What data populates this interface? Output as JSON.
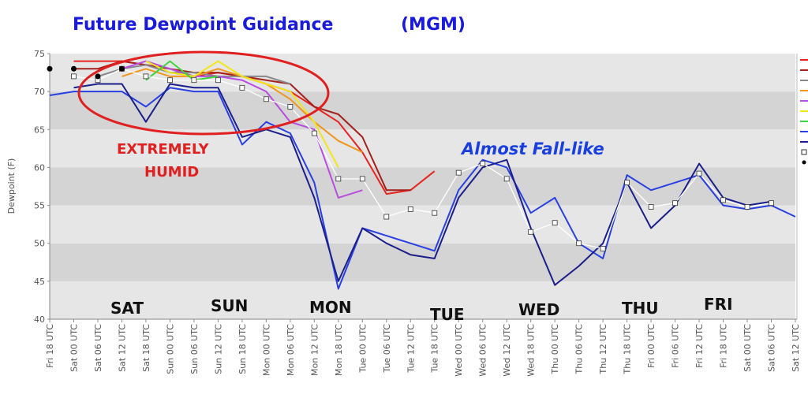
{
  "chart_data": {
    "type": "line",
    "title": "Future Dewpoint Guidance",
    "subtitle": "(MGM)",
    "y_label": "Dewpoint (F)",
    "annotations": [
      "EXTREMELY",
      "HUMID",
      "Almost Fall-like"
    ],
    "day_labels": [
      "SAT",
      "SUN",
      "MON",
      "TUE",
      "WED",
      "THU",
      "FRI"
    ],
    "categories": [
      "Fri 18 UTC",
      "Sat 00 UTC",
      "Sat 06 UTC",
      "Sat 12 UTC",
      "Sat 18 UTC",
      "Sun 00 UTC",
      "Sun 06 UTC",
      "Sun 12 UTC",
      "Sun 18 UTC",
      "Mon 00 UTC",
      "Mon 06 UTC",
      "Mon 12 UTC",
      "Mon 18 UTC",
      "Tue 00 UTC",
      "Tue 06 UTC",
      "Tue 12 UTC",
      "Tue 18 UTC",
      "Wed 00 UTC",
      "Wed 06 UTC",
      "Wed 12 UTC",
      "Wed 18 UTC",
      "Thu 00 UTC",
      "Thu 06 UTC",
      "Thu 12 UTC",
      "Thu 18 UTC",
      "Fri 00 UTC",
      "Fri 06 UTC",
      "Fri 12 UTC",
      "Fri 18 UTC",
      "Sat 00 UTC",
      "Sat 06 UTC",
      "Sat 12 UTC"
    ],
    "ylim": [
      40,
      75
    ],
    "yticks": [
      40,
      45,
      50,
      55,
      60,
      65,
      70,
      75
    ],
    "grid": true,
    "series": [
      {
        "color": "#e8231f",
        "marker": "none",
        "values": [
          null,
          74,
          74,
          74,
          73.5,
          73,
          72,
          72.5,
          72,
          71,
          70,
          68,
          66,
          62,
          56.5,
          57,
          59.5,
          null,
          null,
          null,
          null,
          null,
          null,
          null,
          null,
          null,
          null,
          null,
          null,
          null,
          null,
          null
        ]
      },
      {
        "color": "#a3201c",
        "marker": "none",
        "values": [
          null,
          73,
          73,
          74,
          73.5,
          73,
          72.5,
          72.5,
          72,
          71.5,
          71,
          68,
          67,
          64,
          57,
          57,
          null,
          null,
          null,
          null,
          null,
          null,
          null,
          null,
          null,
          null,
          null,
          null,
          null,
          null,
          null,
          null
        ]
      },
      {
        "color": "#888888",
        "marker": "none",
        "values": [
          null,
          null,
          72,
          73,
          73.5,
          72.5,
          72.5,
          72,
          72,
          72,
          71,
          null,
          null,
          null,
          null,
          null,
          null,
          null,
          null,
          null,
          null,
          null,
          null,
          null,
          null,
          null,
          null,
          null,
          null,
          null,
          null,
          null
        ]
      },
      {
        "color": "#f0961e",
        "marker": "none",
        "values": [
          null,
          null,
          null,
          72,
          73,
          72,
          72,
          73,
          72,
          71,
          69,
          66,
          63.5,
          62,
          null,
          null,
          null,
          null,
          null,
          null,
          null,
          null,
          null,
          null,
          null,
          null,
          null,
          null,
          null,
          null,
          null,
          null
        ]
      },
      {
        "color": "#b84be0",
        "marker": "none",
        "values": [
          null,
          null,
          null,
          73,
          74,
          73,
          72,
          72,
          71.5,
          70,
          66,
          65,
          56,
          57,
          null,
          null,
          null,
          null,
          null,
          null,
          null,
          null,
          null,
          null,
          null,
          null,
          null,
          null,
          null,
          null,
          null,
          null
        ]
      },
      {
        "color": "#f2e61c",
        "marker": "none",
        "values": [
          null,
          null,
          null,
          null,
          74,
          72.5,
          72,
          74,
          72,
          71,
          70,
          66,
          60,
          null,
          null,
          null,
          null,
          null,
          null,
          null,
          null,
          null,
          null,
          null,
          null,
          null,
          null,
          null,
          null,
          null,
          null,
          null
        ]
      },
      {
        "color": "#3ed43e",
        "marker": "none",
        "values": [
          null,
          null,
          null,
          null,
          71.5,
          74,
          71.5,
          72,
          null,
          null,
          null,
          null,
          null,
          null,
          null,
          null,
          null,
          null,
          null,
          null,
          null,
          null,
          null,
          null,
          null,
          null,
          null,
          null,
          null,
          null,
          null,
          null
        ]
      },
      {
        "color": "#2a3fe0",
        "marker": "none",
        "values": [
          69.5,
          70,
          70,
          70,
          68,
          70.5,
          70,
          70,
          63,
          66,
          64.5,
          58,
          44,
          52,
          51,
          50,
          49,
          57,
          61,
          60,
          54,
          56,
          50,
          48,
          59,
          57,
          58,
          59,
          55,
          54.5,
          55,
          53.5
        ]
      },
      {
        "color": "#1c1f8a",
        "marker": "none",
        "values": [
          null,
          70.5,
          71,
          71,
          66,
          71,
          70.5,
          70.5,
          64,
          65,
          64,
          56,
          45,
          52,
          50,
          48.5,
          48,
          56,
          60,
          61,
          52,
          44.5,
          47,
          50,
          58,
          52,
          55,
          60.5,
          56,
          55,
          55.5,
          null
        ]
      },
      {
        "color": "#ffffff",
        "marker": "square",
        "values": [
          null,
          72,
          71.5,
          73,
          72,
          71.5,
          71.5,
          71.5,
          70.5,
          69,
          68,
          64.5,
          58.5,
          58.5,
          53.5,
          54.5,
          54,
          59.3,
          60.5,
          58.5,
          51.5,
          52.7,
          50,
          49.3,
          58,
          54.8,
          55.3,
          59.2,
          55.7,
          54.8,
          55.3,
          null
        ]
      },
      {
        "color": "#000000",
        "marker": "dot",
        "values": [
          73,
          73,
          72,
          73,
          null,
          null,
          null,
          null,
          null,
          null,
          null,
          null,
          null,
          null,
          null,
          null,
          null,
          null,
          null,
          null,
          null,
          null,
          null,
          null,
          null,
          null,
          null,
          null,
          null,
          null,
          null,
          null
        ]
      }
    ]
  }
}
